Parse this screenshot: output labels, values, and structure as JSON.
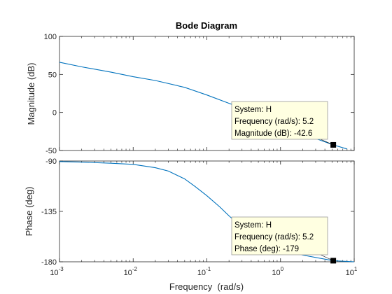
{
  "chart_data": {
    "type": "line",
    "title": "Bode Diagram",
    "xlabel": "Frequency  (rad/s)",
    "xscale": "log",
    "xlim": [
      0.001,
      10
    ],
    "x_tick_labels": [
      {
        "base": "10",
        "exp": "-3"
      },
      {
        "base": "10",
        "exp": "-2"
      },
      {
        "base": "10",
        "exp": "-1"
      },
      {
        "base": "10",
        "exp": "0"
      },
      {
        "base": "10",
        "exp": "1"
      }
    ],
    "line_color": "#0072bd",
    "panels": [
      {
        "ylabel": "Magnitude (dB)",
        "ylim": [
          -50,
          100
        ],
        "y_tick_labels": [
          "100",
          "50",
          "0",
          "-50"
        ],
        "series": {
          "x": [
            0.001,
            0.002,
            0.005,
            0.01,
            0.02,
            0.05,
            0.1,
            0.2,
            0.5,
            1,
            2,
            5.2,
            8
          ],
          "y": [
            66,
            60,
            53,
            47,
            42,
            33,
            23,
            12,
            -2,
            -16,
            -28,
            -42.6,
            -48
          ]
        },
        "datatip": {
          "x": 5.2,
          "y": -42.6,
          "lines": [
            "System: H",
            "Frequency (rad/s): 5.2",
            "Magnitude (dB): -42.6"
          ]
        }
      },
      {
        "ylabel": "Phase (deg)",
        "ylim": [
          -180,
          -90
        ],
        "y_tick_labels": [
          "-90",
          "-135",
          "-180"
        ],
        "series": {
          "x": [
            0.001,
            0.002,
            0.005,
            0.01,
            0.02,
            0.03,
            0.05,
            0.07,
            0.1,
            0.15,
            0.2,
            0.3,
            0.5,
            0.7,
            1,
            2,
            5.2,
            10
          ],
          "y": [
            -90.5,
            -91,
            -92,
            -93,
            -96,
            -99,
            -106,
            -113,
            -121,
            -131,
            -139,
            -149,
            -159,
            -164,
            -168,
            -174,
            -179,
            -180
          ]
        },
        "datatip": {
          "x": 5.2,
          "y": -179,
          "lines": [
            "System: H",
            "Frequency (rad/s): 5.2",
            "Phase (deg): -179"
          ]
        }
      }
    ]
  }
}
